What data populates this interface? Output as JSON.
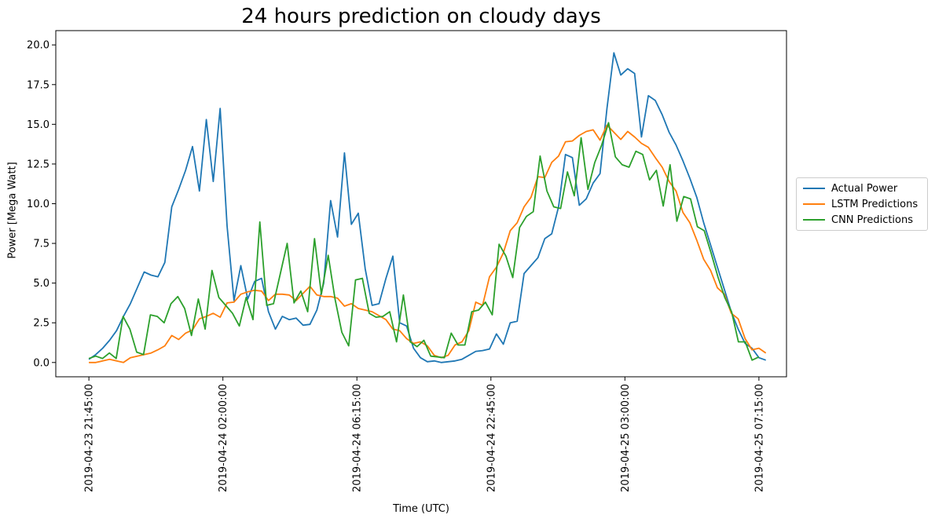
{
  "chart_data": {
    "type": "line",
    "title": "24 hours prediction on cloudy days",
    "xlabel": "Time (UTC)",
    "ylabel": "Power [Mega Watt]",
    "ylim": [
      -0.9,
      20.9
    ],
    "y_ticks": [
      "0.0",
      "2.5",
      "5.0",
      "7.5",
      "10.0",
      "12.5",
      "15.0",
      "17.5",
      "20.0"
    ],
    "x_ticks": [
      "2019-04-23 21:45:00",
      "2019-04-24 02:00:00",
      "2019-04-24 06:15:00",
      "2019-04-24 22:45:00",
      "2019-04-25 03:00:00",
      "2019-04-25 07:15:00"
    ],
    "x_tick_positions": [
      0,
      17,
      34,
      51,
      68,
      85
    ],
    "xlim": [
      -4.2,
      88.5
    ],
    "grid": false,
    "legend_position": "center-right, outside plot",
    "series": [
      {
        "name": "Actual Power",
        "color": "#1f77b4",
        "values": [
          0.2,
          0.5,
          0.9,
          1.4,
          2.0,
          2.9,
          3.7,
          4.7,
          5.7,
          5.5,
          5.4,
          6.3,
          9.8,
          10.9,
          12.1,
          13.6,
          10.8,
          15.3,
          11.4,
          16.0,
          8.6,
          3.9,
          6.1,
          4.0,
          5.1,
          5.3,
          3.2,
          2.1,
          2.9,
          2.7,
          2.8,
          2.35,
          2.4,
          3.3,
          5.0,
          10.2,
          7.9,
          13.2,
          8.7,
          9.4,
          5.9,
          3.6,
          3.7,
          5.3,
          6.7,
          2.5,
          2.3,
          0.9,
          0.3,
          0.05,
          0.1,
          0.0,
          0.05,
          0.1,
          0.2,
          0.45,
          0.7,
          0.75,
          0.85,
          1.8,
          1.15,
          2.5,
          2.6,
          5.6,
          6.1,
          6.6,
          7.8,
          8.1,
          9.8,
          13.1,
          12.9,
          9.9,
          10.3,
          11.3,
          11.9,
          16.0,
          19.5,
          18.1,
          18.5,
          18.2,
          14.2,
          16.8,
          16.5,
          15.6,
          14.5,
          13.7,
          12.7,
          11.6,
          10.4,
          8.8,
          7.4,
          6.0,
          4.6,
          3.2,
          2.1,
          1.2,
          0.9,
          0.3,
          0.15
        ],
        "x_start": 0,
        "x_step": 0.8763
      },
      {
        "name": "LSTM Predictions",
        "color": "#ff7f0e",
        "values": [
          0.0,
          0.0,
          0.1,
          0.2,
          0.1,
          0.0,
          0.3,
          0.4,
          0.5,
          0.6,
          0.8,
          1.05,
          1.7,
          1.45,
          1.85,
          2.05,
          2.75,
          2.9,
          3.1,
          2.85,
          3.75,
          3.8,
          4.3,
          4.45,
          4.55,
          4.5,
          3.9,
          4.3,
          4.3,
          4.25,
          3.9,
          4.35,
          4.8,
          4.25,
          4.15,
          4.15,
          4.05,
          3.55,
          3.7,
          3.4,
          3.3,
          3.2,
          2.95,
          2.7,
          2.1,
          2.0,
          1.5,
          1.2,
          1.3,
          1.05,
          0.45,
          0.3,
          0.45,
          1.1,
          1.3,
          2.0,
          3.8,
          3.6,
          5.4,
          6.0,
          6.9,
          8.3,
          8.8,
          9.8,
          10.4,
          11.7,
          11.65,
          12.6,
          13.0,
          13.9,
          13.95,
          14.3,
          14.55,
          14.65,
          14.0,
          14.95,
          14.5,
          14.05,
          14.55,
          14.2,
          13.8,
          13.55,
          12.9,
          12.3,
          11.4,
          10.8,
          9.45,
          8.8,
          7.7,
          6.5,
          5.8,
          4.7,
          4.3,
          3.1,
          2.75,
          1.5,
          0.8,
          0.9,
          0.6
        ],
        "x_start": 0,
        "x_step": 0.8763
      },
      {
        "name": "CNN Predictions",
        "color": "#2ca02c",
        "values": [
          0.25,
          0.4,
          0.25,
          0.6,
          0.25,
          2.9,
          2.1,
          0.65,
          0.5,
          3.0,
          2.9,
          2.5,
          3.7,
          4.15,
          3.4,
          1.7,
          4.0,
          2.1,
          5.8,
          4.1,
          3.6,
          3.1,
          2.3,
          4.1,
          2.7,
          8.85,
          3.6,
          3.7,
          5.6,
          7.5,
          3.75,
          4.5,
          3.2,
          7.8,
          4.3,
          6.75,
          4.0,
          1.9,
          1.05,
          5.2,
          5.3,
          3.1,
          2.85,
          2.9,
          3.2,
          1.3,
          4.25,
          1.3,
          1.0,
          1.4,
          0.4,
          0.35,
          0.3,
          1.85,
          1.1,
          1.1,
          3.2,
          3.3,
          3.8,
          3.0,
          7.45,
          6.7,
          5.35,
          8.5,
          9.2,
          9.5,
          13.0,
          10.8,
          9.8,
          9.7,
          12.0,
          10.5,
          14.15,
          10.9,
          12.6,
          13.7,
          15.1,
          12.95,
          12.45,
          12.3,
          13.3,
          13.1,
          11.5,
          12.1,
          9.85,
          12.45,
          8.9,
          10.45,
          10.3,
          8.55,
          8.3,
          6.9,
          5.4,
          4.1,
          3.2,
          1.3,
          1.3,
          0.15,
          0.35
        ]
      }
    ]
  },
  "legend": {
    "items": [
      "Actual Power",
      "LSTM Predictions",
      "CNN Predictions"
    ]
  }
}
